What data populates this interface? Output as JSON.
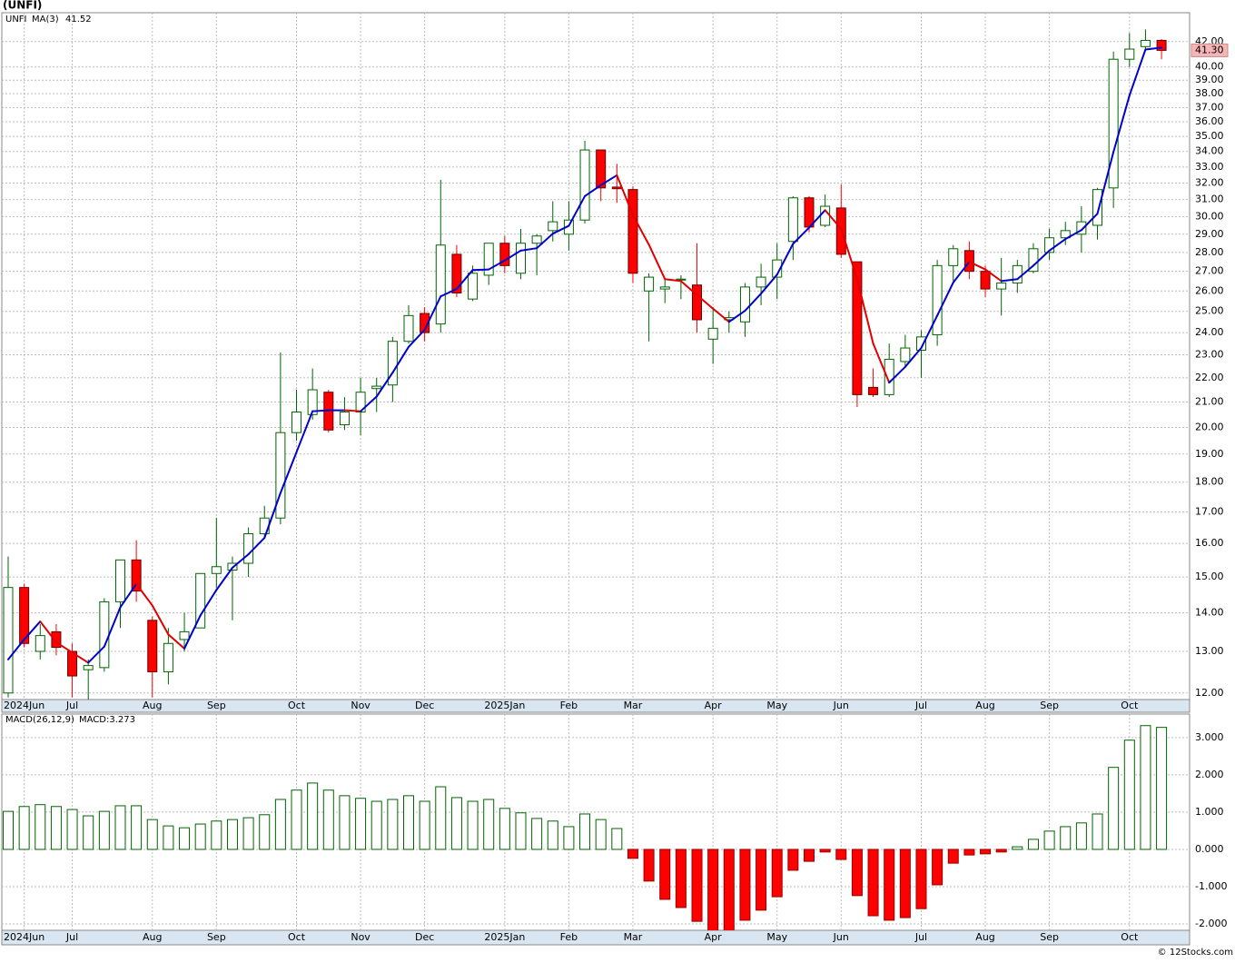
{
  "chart_data": [
    {
      "type": "candlestick",
      "title": "(UNFI)",
      "symbol": "UNFI",
      "ma_name": "MA(3)",
      "ma_label": "41.52",
      "last_label": "41.30",
      "log_scale": true,
      "grid": true,
      "colors": {
        "up": "#006400",
        "down": "#ff0000",
        "ma_up": "#0000cc",
        "ma_down": "#e00000",
        "last_box": "#f4b6b6"
      },
      "categories": [
        null,
        "2024Jun",
        null,
        null,
        "Jul",
        null,
        null,
        null,
        null,
        "Aug",
        null,
        null,
        null,
        "Sep",
        null,
        null,
        null,
        null,
        "Oct",
        null,
        null,
        null,
        "Nov",
        null,
        null,
        null,
        "Dec",
        null,
        null,
        null,
        null,
        "2025Jan",
        null,
        null,
        null,
        "Feb",
        null,
        null,
        null,
        "Mar",
        null,
        null,
        null,
        null,
        "Apr",
        null,
        null,
        null,
        "May",
        null,
        null,
        null,
        "Jun",
        null,
        null,
        null,
        null,
        "Jul",
        null,
        null,
        null,
        "Aug",
        null,
        null,
        null,
        "Sep",
        null,
        null,
        null,
        null,
        "Oct",
        null,
        null
      ],
      "open": [
        12.0,
        14.7,
        13.0,
        13.5,
        13.0,
        12.55,
        12.6,
        14.3,
        15.5,
        13.8,
        12.5,
        13.3,
        13.6,
        15.1,
        15.2,
        15.4,
        16.3,
        16.8,
        19.8,
        20.5,
        21.4,
        20.1,
        20.6,
        21.55,
        21.7,
        23.6,
        24.9,
        24.4,
        27.9,
        25.6,
        26.8,
        28.5,
        26.9,
        28.5,
        29.2,
        29.0,
        29.8,
        34.1,
        31.75,
        31.6,
        26.0,
        26.1,
        26.55,
        26.3,
        23.7,
        24.6,
        24.5,
        26.2,
        26.7,
        28.6,
        31.1,
        29.5,
        30.5,
        27.5,
        21.6,
        21.3,
        22.7,
        23.2,
        23.9,
        27.3,
        28.1,
        27.0,
        26.1,
        26.4,
        27.0,
        28.0,
        28.8,
        29.0,
        29.5,
        31.7,
        40.6,
        41.6,
        42.1
      ],
      "high": [
        15.6,
        14.8,
        13.7,
        13.7,
        13.2,
        12.8,
        14.4,
        15.5,
        16.1,
        13.9,
        13.6,
        14.0,
        15.1,
        16.8,
        15.6,
        16.5,
        17.2,
        23.1,
        21.5,
        22.4,
        21.5,
        21.2,
        22.0,
        22.0,
        23.8,
        25.3,
        25.2,
        32.2,
        28.4,
        27.3,
        28.5,
        28.9,
        29.3,
        29.0,
        30.9,
        30.9,
        34.7,
        34.1,
        33.2,
        31.8,
        26.9,
        26.6,
        26.8,
        28.5,
        25.2,
        25.0,
        26.4,
        27.4,
        28.5,
        31.2,
        31.2,
        31.3,
        31.9,
        27.5,
        22.4,
        23.5,
        23.9,
        24.1,
        27.6,
        28.4,
        28.6,
        27.3,
        27.7,
        27.6,
        28.5,
        29.3,
        29.7,
        30.6,
        31.7,
        41.2,
        42.7,
        43.0,
        42.2
      ],
      "low": [
        11.9,
        13.1,
        12.8,
        12.9,
        11.9,
        11.8,
        12.5,
        13.6,
        14.3,
        11.9,
        12.2,
        13.0,
        13.6,
        14.7,
        13.8,
        15.0,
        16.2,
        16.6,
        19.5,
        20.3,
        19.8,
        19.9,
        19.7,
        20.6,
        21.0,
        23.5,
        23.6,
        24.0,
        25.7,
        25.5,
        26.3,
        26.9,
        26.6,
        26.8,
        28.6,
        28.1,
        29.6,
        30.9,
        30.8,
        26.4,
        23.6,
        25.4,
        25.6,
        24.0,
        22.6,
        24.0,
        23.8,
        25.3,
        25.6,
        27.6,
        29.1,
        29.4,
        27.7,
        20.8,
        21.2,
        21.2,
        22.5,
        22.0,
        23.4,
        26.5,
        26.6,
        25.7,
        24.8,
        25.9,
        26.9,
        27.6,
        28.4,
        28.0,
        28.7,
        30.5,
        40.0,
        41.4,
        40.6
      ],
      "close": [
        14.7,
        13.2,
        13.4,
        13.1,
        12.4,
        12.65,
        14.3,
        15.5,
        14.6,
        12.5,
        13.2,
        13.5,
        15.1,
        15.3,
        15.4,
        16.3,
        16.8,
        19.8,
        20.6,
        21.5,
        19.9,
        20.6,
        21.4,
        21.65,
        23.6,
        24.8,
        24.0,
        28.4,
        25.9,
        26.9,
        28.5,
        27.3,
        28.5,
        28.9,
        29.7,
        29.8,
        34.1,
        31.7,
        31.65,
        26.9,
        26.7,
        26.2,
        26.6,
        24.6,
        24.2,
        24.7,
        26.2,
        26.7,
        27.6,
        31.1,
        29.4,
        30.6,
        27.9,
        21.3,
        21.3,
        22.8,
        23.3,
        23.8,
        27.3,
        28.2,
        27.0,
        26.1,
        26.4,
        27.3,
        28.2,
        28.8,
        29.2,
        29.7,
        31.6,
        40.6,
        41.4,
        42.1,
        41.3
      ],
      "ma": [
        12.8,
        13.3,
        13.77,
        13.23,
        12.97,
        12.72,
        13.12,
        14.15,
        14.8,
        14.2,
        13.43,
        13.07,
        13.93,
        14.63,
        15.27,
        15.67,
        16.17,
        17.63,
        19.07,
        20.63,
        20.67,
        20.67,
        20.63,
        21.22,
        22.22,
        23.35,
        24.13,
        25.73,
        26.1,
        27.07,
        27.1,
        27.57,
        28.1,
        28.23,
        29.03,
        29.47,
        31.2,
        31.87,
        32.48,
        30.08,
        28.42,
        26.6,
        26.5,
        25.8,
        25.13,
        24.5,
        25.03,
        25.87,
        26.83,
        28.47,
        29.37,
        30.37,
        29.3,
        26.6,
        23.5,
        21.8,
        22.47,
        23.3,
        24.8,
        26.43,
        27.5,
        27.1,
        26.5,
        26.6,
        27.3,
        28.1,
        28.73,
        29.23,
        30.17,
        33.97,
        37.87,
        41.37,
        41.52
      ],
      "ylim": [
        11.85,
        44.4
      ],
      "yticks": [
        {
          "value": 12,
          "label": "12.00"
        },
        {
          "value": 13,
          "label": "13.00"
        },
        {
          "value": 14,
          "label": "14.00"
        },
        {
          "value": 15,
          "label": "15.00"
        },
        {
          "value": 16,
          "label": "16.00"
        },
        {
          "value": 17,
          "label": "17.00"
        },
        {
          "value": 18,
          "label": "18.00"
        },
        {
          "value": 19,
          "label": "19.00"
        },
        {
          "value": 20,
          "label": "20.00"
        },
        {
          "value": 21,
          "label": "21.00"
        },
        {
          "value": 22,
          "label": "22.00"
        },
        {
          "value": 23,
          "label": "23.00"
        },
        {
          "value": 24,
          "label": "24.00"
        },
        {
          "value": 25,
          "label": "25.00"
        },
        {
          "value": 26,
          "label": "26.00"
        },
        {
          "value": 27,
          "label": "27.00"
        },
        {
          "value": 28,
          "label": "28.00"
        },
        {
          "value": 29,
          "label": "29.00"
        },
        {
          "value": 30,
          "label": "30.00"
        },
        {
          "value": 31,
          "label": "31.00"
        },
        {
          "value": 32,
          "label": "32.00"
        },
        {
          "value": 33,
          "label": "33.00"
        },
        {
          "value": 34,
          "label": "34.00"
        },
        {
          "value": 35,
          "label": "35.00"
        },
        {
          "value": 36,
          "label": "36.00"
        },
        {
          "value": 37,
          "label": "37.00"
        },
        {
          "value": 38,
          "label": "38.00"
        },
        {
          "value": 39,
          "label": "39.00"
        },
        {
          "value": 40,
          "label": "40.00"
        },
        {
          "value": 42,
          "label": "42.00"
        }
      ]
    },
    {
      "type": "bar",
      "name": "MACD(26,12,9)",
      "value_label": "MACD:3.273",
      "grid": true,
      "colors": {
        "up": "#006400",
        "down": "#ff0000"
      },
      "categories": [
        null,
        "2024Jun",
        null,
        null,
        "Jul",
        null,
        null,
        null,
        null,
        "Aug",
        null,
        null,
        null,
        "Sep",
        null,
        null,
        null,
        null,
        "Oct",
        null,
        null,
        null,
        "Nov",
        null,
        null,
        null,
        "Dec",
        null,
        null,
        null,
        null,
        "2025Jan",
        null,
        null,
        null,
        "Feb",
        null,
        null,
        null,
        "Mar",
        null,
        null,
        null,
        null,
        "Apr",
        null,
        null,
        null,
        "May",
        null,
        null,
        null,
        "Jun",
        null,
        null,
        null,
        null,
        "Jul",
        null,
        null,
        null,
        "Aug",
        null,
        null,
        null,
        "Sep",
        null,
        null,
        null,
        null,
        "Oct",
        null,
        null
      ],
      "values": [
        1.02,
        1.15,
        1.2,
        1.15,
        1.07,
        0.9,
        1.02,
        1.17,
        1.17,
        0.8,
        0.63,
        0.58,
        0.68,
        0.76,
        0.8,
        0.85,
        0.93,
        1.34,
        1.59,
        1.78,
        1.59,
        1.44,
        1.37,
        1.29,
        1.34,
        1.44,
        1.29,
        1.68,
        1.39,
        1.29,
        1.34,
        1.1,
        0.98,
        0.83,
        0.76,
        0.61,
        0.95,
        0.8,
        0.56,
        -0.24,
        -0.85,
        -1.34,
        -1.56,
        -1.93,
        -2.2,
        -2.2,
        -1.9,
        -1.63,
        -1.27,
        -0.56,
        -0.32,
        -0.07,
        -0.27,
        -1.24,
        -1.78,
        -1.9,
        -1.83,
        -1.59,
        -0.95,
        -0.37,
        -0.15,
        -0.12,
        -0.07,
        0.07,
        0.27,
        0.49,
        0.61,
        0.71,
        0.95,
        2.2,
        2.93,
        3.32,
        3.273
      ],
      "ylim": [
        -2.17,
        3.63
      ],
      "yticks": [
        {
          "value": -2,
          "label": "-2.000"
        },
        {
          "value": -1,
          "label": "-1.000"
        },
        {
          "value": 0,
          "label": "0.000"
        },
        {
          "value": 1,
          "label": "1.000"
        },
        {
          "value": 2,
          "label": "2.000"
        },
        {
          "value": 3,
          "label": "3.000"
        }
      ]
    }
  ],
  "footer": "© 12Stocks.com"
}
